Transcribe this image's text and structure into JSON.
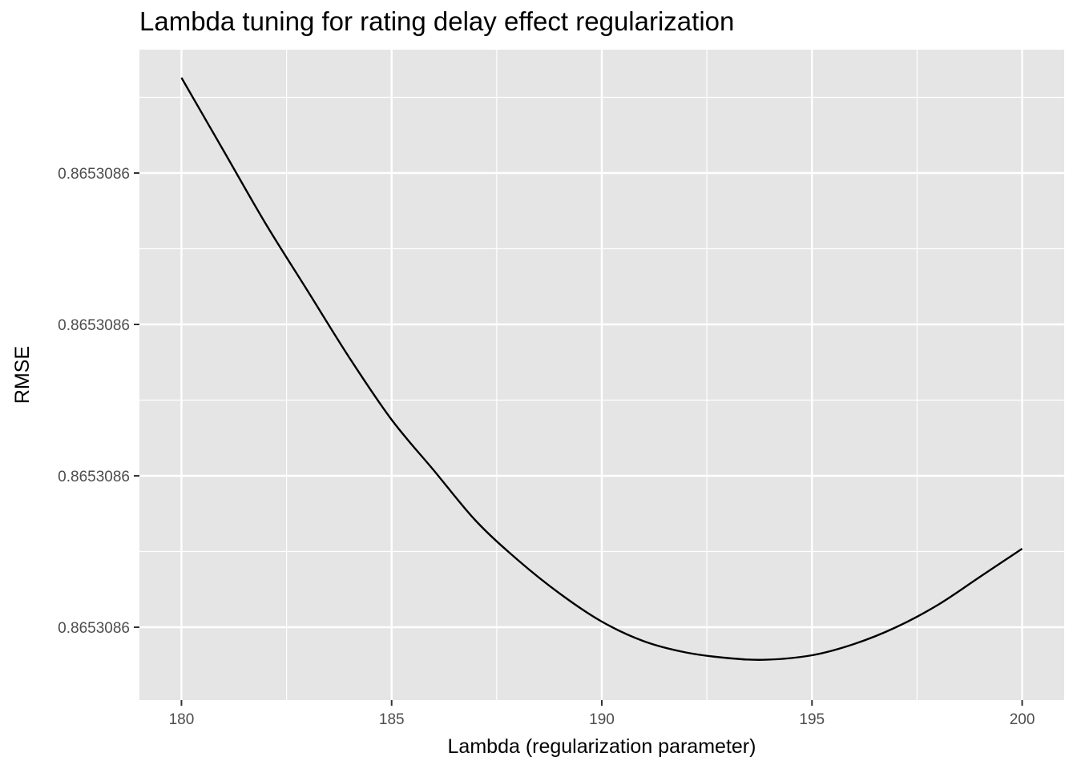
{
  "chart_data": {
    "type": "line",
    "title": "Lambda tuning for rating delay effect regularization",
    "xlabel": "Lambda (regularization parameter)",
    "ylabel": "RMSE",
    "xlim": [
      179,
      201
    ],
    "ylim": [
      -0.14,
      1.02
    ],
    "x_ticks": [
      180,
      185,
      190,
      195,
      200
    ],
    "x_tick_labels": [
      "180",
      "185",
      "190",
      "195",
      "200"
    ],
    "y_ticks": [
      0.8,
      0.53,
      0.26,
      -0.01
    ],
    "y_tick_labels": [
      "0.8653086",
      "0.8653086",
      "0.8653086",
      "0.8653086"
    ],
    "y_value_note": "y in arbitrary units relative to the printed tick positions; tick labels all round to 0.8653086",
    "grid": true,
    "legend": "none",
    "series": [
      {
        "color": "#000000",
        "x": [
          180,
          181,
          182,
          183,
          184,
          185,
          186,
          187,
          188,
          189,
          190,
          191,
          192,
          193,
          193.9,
          195,
          196,
          197,
          198,
          199,
          200
        ],
        "y": [
          0.97,
          0.84,
          0.71,
          0.59,
          0.47,
          0.36,
          0.27,
          0.18,
          0.11,
          0.05,
          0.0,
          -0.035,
          -0.055,
          -0.065,
          -0.068,
          -0.06,
          -0.04,
          -0.01,
          0.03,
          0.08,
          0.13
        ]
      }
    ]
  }
}
